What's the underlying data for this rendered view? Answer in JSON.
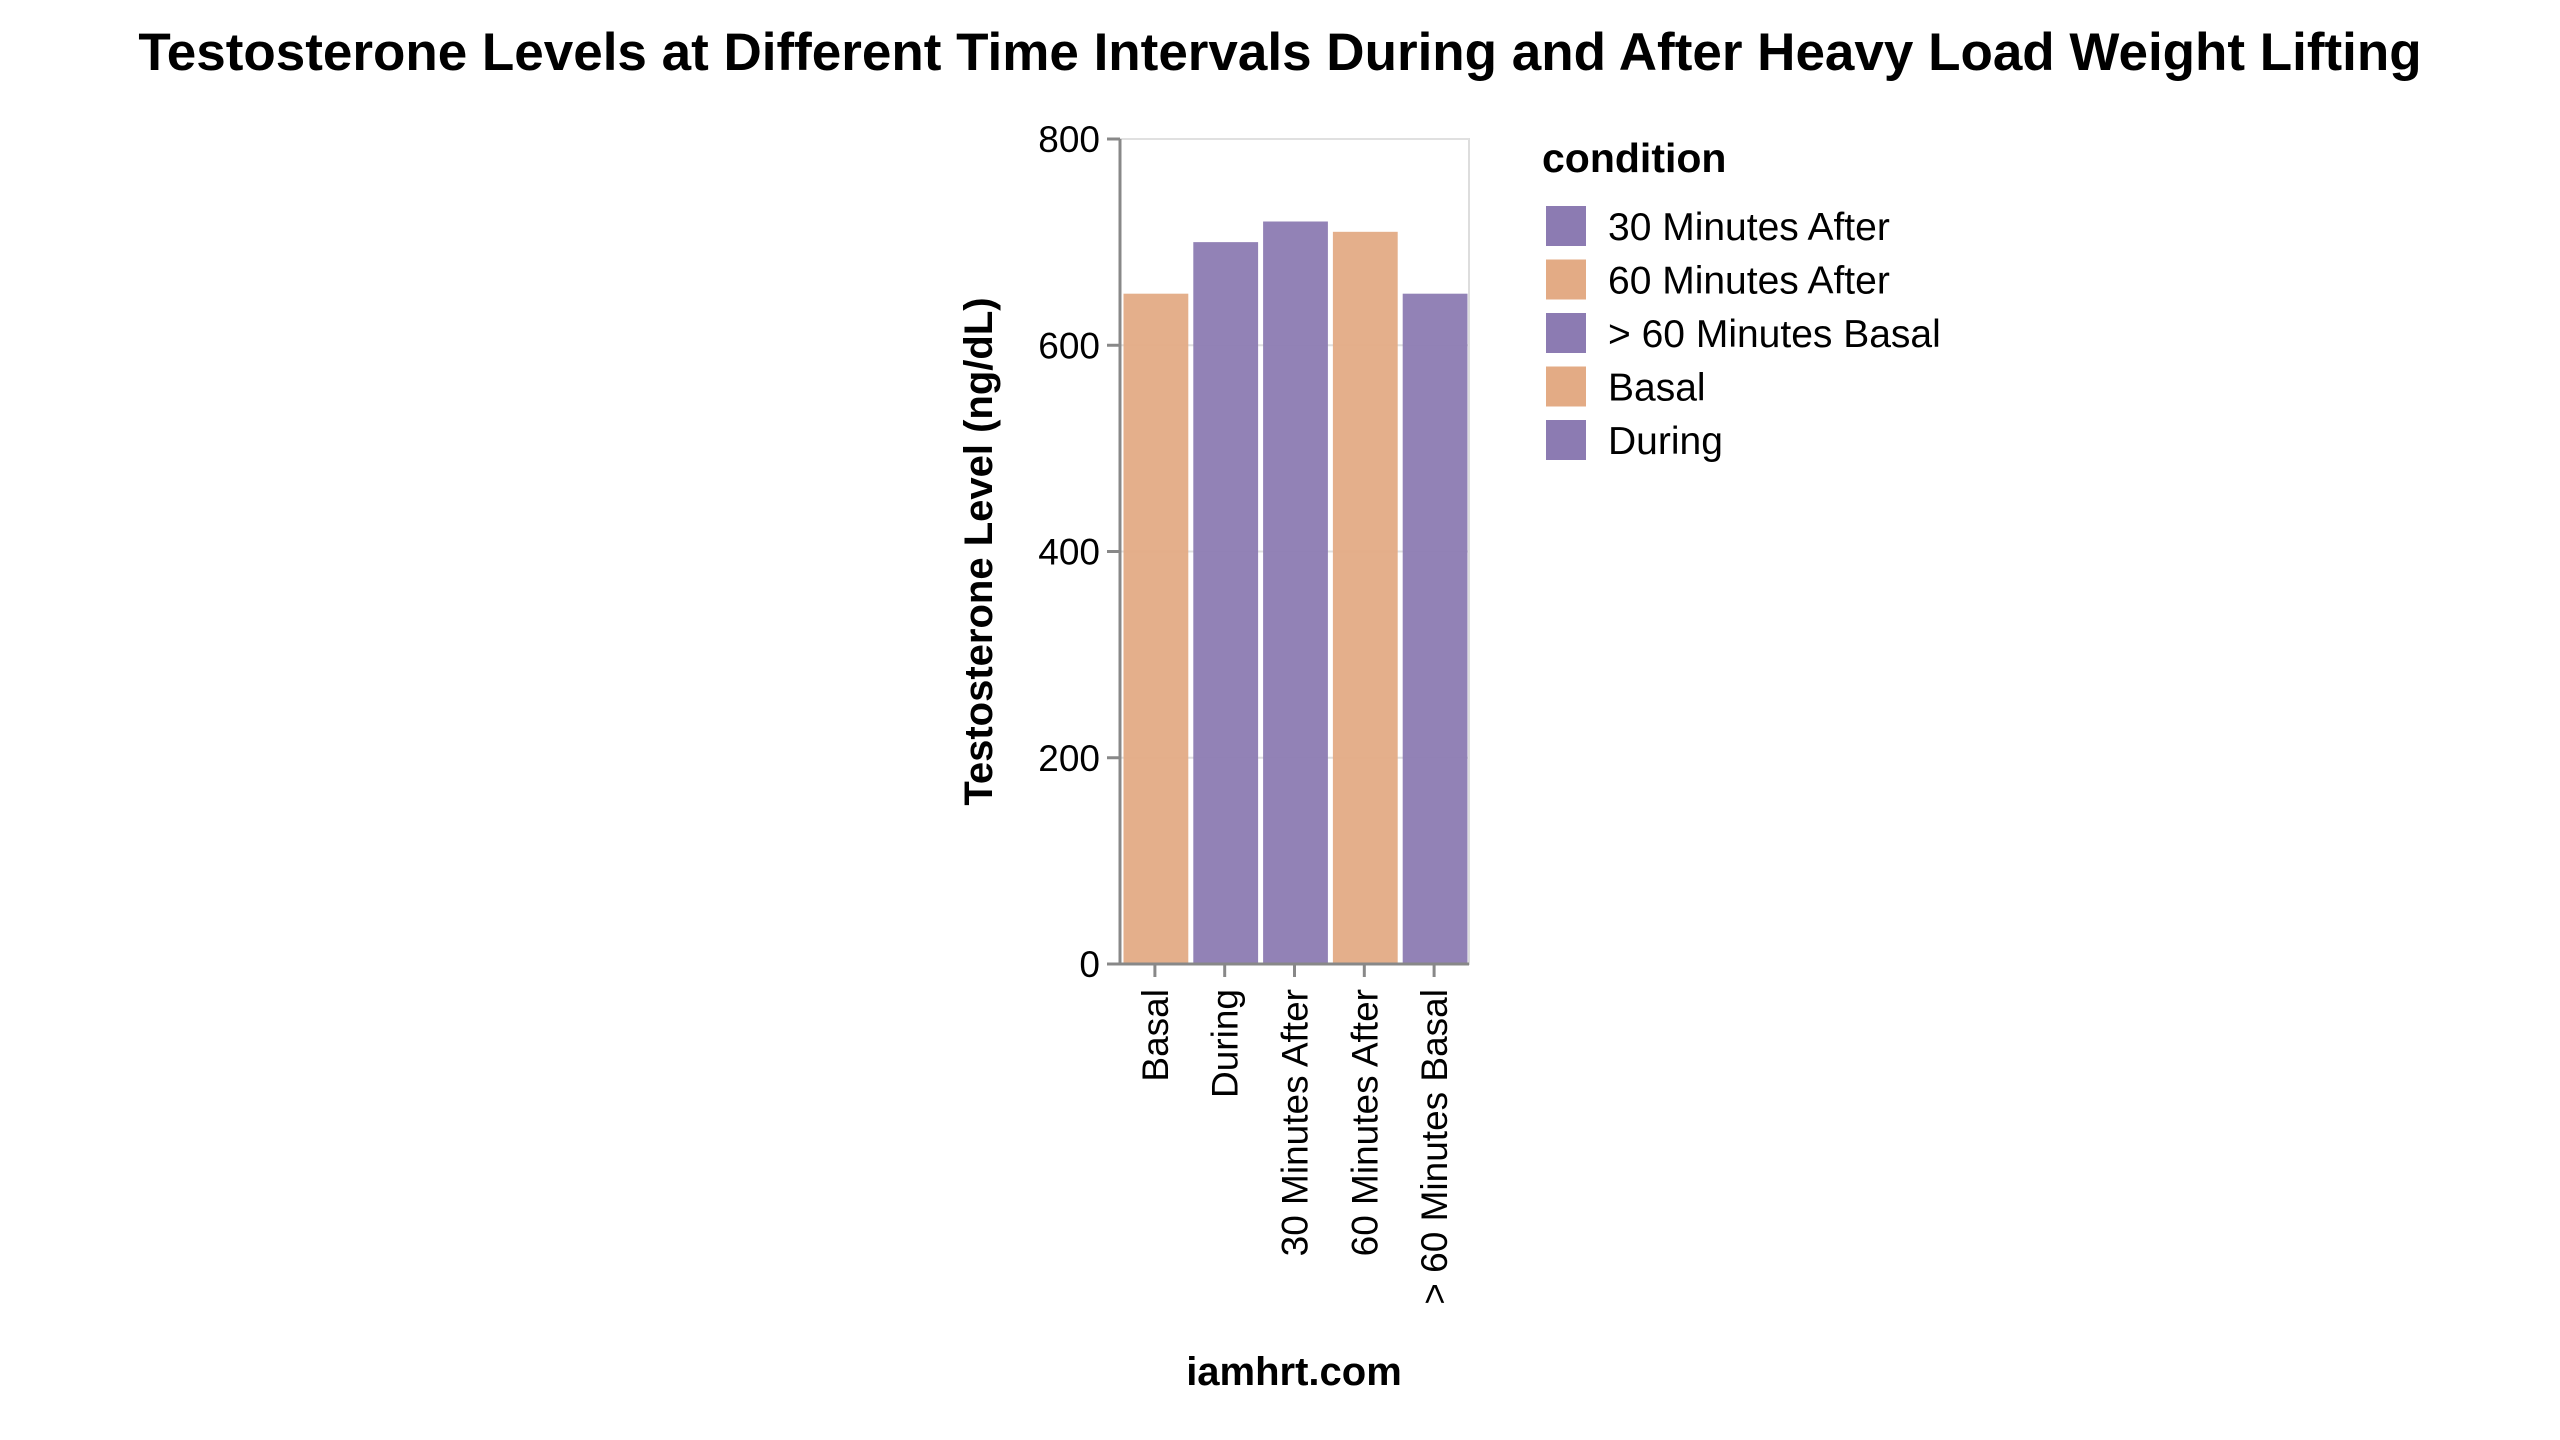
{
  "chart_data": {
    "type": "bar",
    "title": "Testosterone Levels at Different Time Intervals During and After Heavy Load Weight Lifting",
    "xlabel": "iamhrt.com",
    "ylabel": "Testosterone Level (ng/dL)",
    "ylim": [
      0,
      800
    ],
    "yticks": [
      "0",
      "200",
      "400",
      "600",
      "800"
    ],
    "grid": true,
    "legend_title": "condition",
    "legend_position": "right",
    "categories": [
      "Basal",
      "During",
      "30 Minutes After",
      "60 Minutes After",
      "> 60 Minutes Basal"
    ],
    "values": [
      650,
      700,
      720,
      710,
      650
    ],
    "bar_colors": [
      "#e3ab85",
      "#8c7bb2",
      "#8c7bb2",
      "#e3ab85",
      "#8c7bb2"
    ],
    "legend": [
      {
        "label": "30 Minutes After",
        "color": "#8c7bb2"
      },
      {
        "label": "60 Minutes After",
        "color": "#e3ab85"
      },
      {
        "label": "> 60 Minutes Basal",
        "color": "#8c7bb2"
      },
      {
        "label": "Basal",
        "color": "#e3ab85"
      },
      {
        "label": "During",
        "color": "#8c7bb2"
      }
    ]
  }
}
